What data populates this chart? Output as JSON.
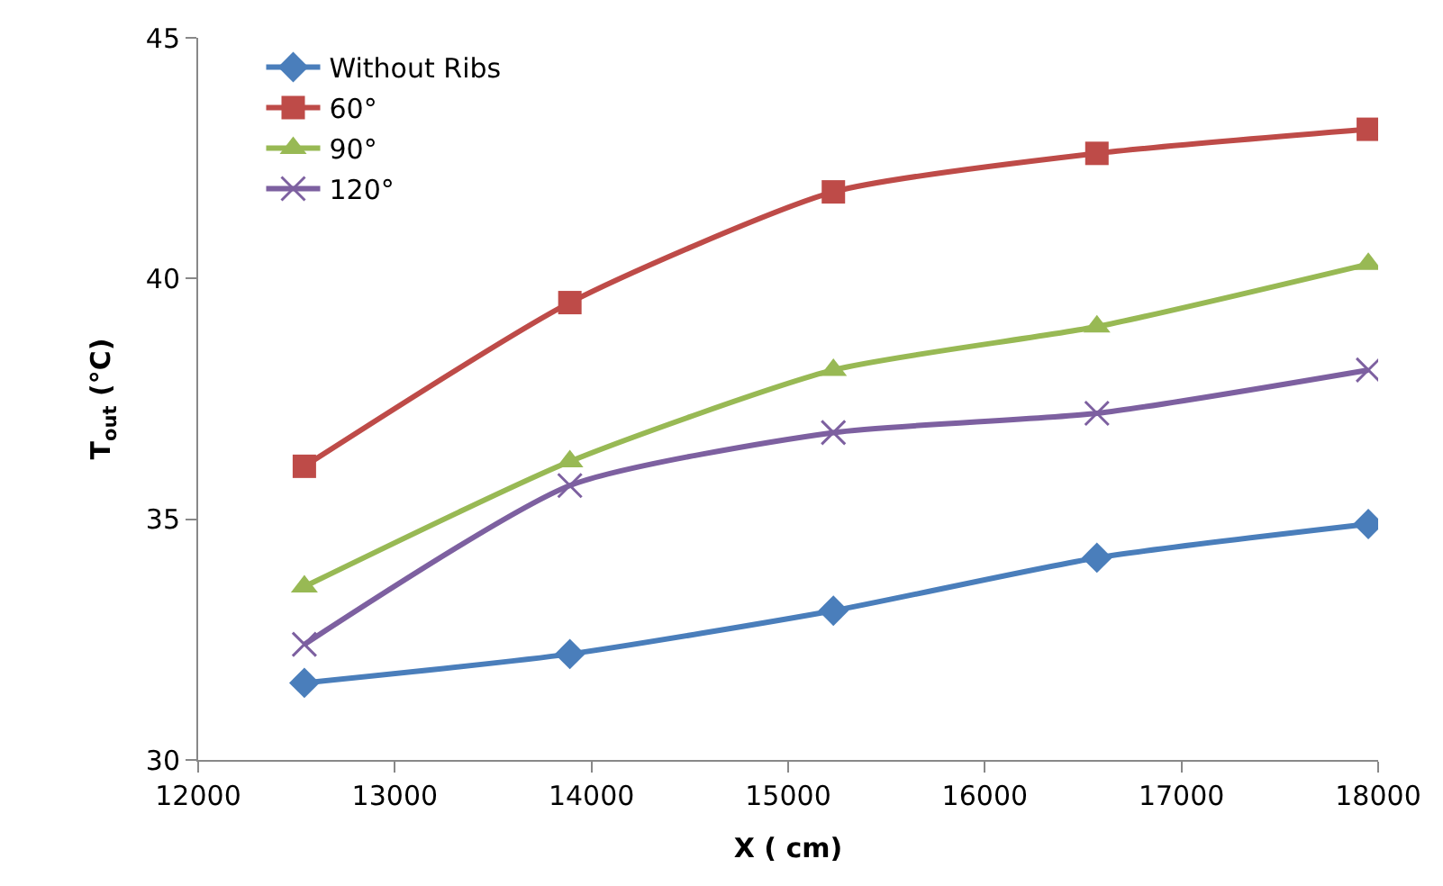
{
  "chart_data": {
    "type": "line",
    "xlabel": "X ( cm)",
    "ylabel": "T$_{out}$ (°C)",
    "x": [
      12540,
      13890,
      15230,
      16570,
      17950
    ],
    "xlim": [
      12000,
      18000
    ],
    "xticks": [
      12000,
      13000,
      14000,
      15000,
      16000,
      17000,
      18000
    ],
    "ylim": [
      30,
      45
    ],
    "yticks": [
      30,
      35,
      40,
      45
    ],
    "grid": false,
    "legend": "top left",
    "line_style": "solid",
    "series": [
      {
        "name": "Without Ribs",
        "color": "#4a7ebb",
        "marker": "diamond",
        "values": [
          31.6,
          32.2,
          33.1,
          34.2,
          34.9
        ]
      },
      {
        "name": "60°",
        "color": "#be4b48",
        "marker": "square",
        "values": [
          36.1,
          39.5,
          41.8,
          42.6,
          43.1
        ]
      },
      {
        "name": "90°",
        "color": "#98b954",
        "marker": "triangle",
        "values": [
          33.6,
          36.2,
          38.1,
          39.0,
          40.3
        ]
      },
      {
        "name": "120°",
        "color": "#7d60a0",
        "marker": "cross",
        "values": [
          32.4,
          35.7,
          36.8,
          37.2,
          38.1
        ]
      }
    ]
  }
}
